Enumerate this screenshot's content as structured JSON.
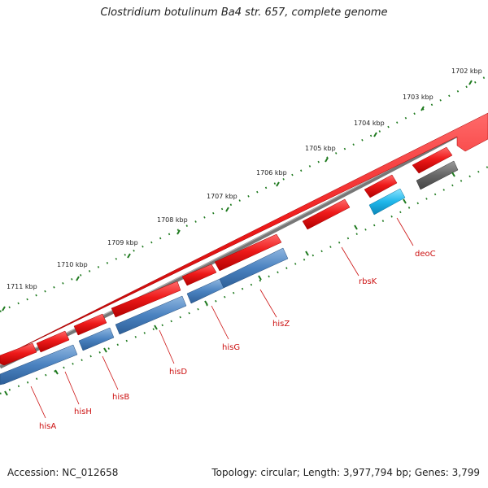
{
  "title": "Clostridium botulinum Ba4 str. 657, complete genome",
  "footer": {
    "accession": "Accession: NC_012658",
    "stats": "Topology: circular; Length: 3,977,794 bp; Genes: 3,799"
  },
  "ticks": [
    {
      "label": "1702 kbp"
    },
    {
      "label": "1703 kbp"
    },
    {
      "label": "1704 kbp"
    },
    {
      "label": "1705 kbp"
    },
    {
      "label": "1706 kbp"
    },
    {
      "label": "1707 kbp"
    },
    {
      "label": "1708 kbp"
    },
    {
      "label": "1709 kbp"
    },
    {
      "label": "1710 kbp"
    },
    {
      "label": "1711 kbp"
    }
  ],
  "genes": [
    {
      "label": "deoC",
      "feature": "cds",
      "color": "#18b4e8"
    },
    {
      "label": "rbsK",
      "feature": "gene",
      "color": "#e81616"
    },
    {
      "label": "hisZ",
      "feature": "cds",
      "color": "#3d78b8"
    },
    {
      "label": "hisG",
      "feature": "cds",
      "color": "#3d78b8"
    },
    {
      "label": "hisD",
      "feature": "cds",
      "color": "#3d78b8"
    },
    {
      "label": "hisB",
      "feature": "cds",
      "color": "#3d78b8"
    },
    {
      "label": "hisH",
      "feature": "cds",
      "color": "#3d78b8"
    },
    {
      "label": "hisA",
      "feature": "cds",
      "color": "#3d78b8"
    }
  ],
  "colors": {
    "gene": "#e81616",
    "cds": "#3d78b8",
    "other": "#6a6a6a",
    "backbone": "#7a7a7a",
    "tick": "#1f7a1f",
    "label": "#cc1111"
  }
}
